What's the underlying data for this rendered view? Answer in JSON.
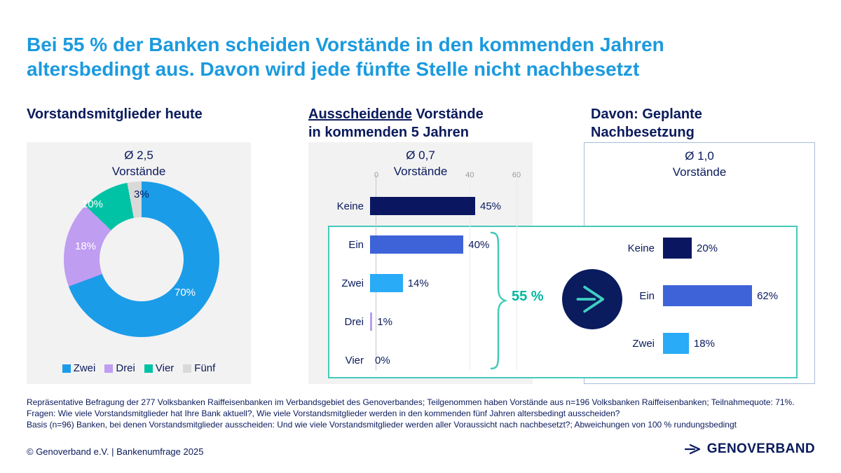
{
  "header": {
    "title_line1": "Bei 55 % der Banken scheiden Vorstände in den kommenden Jahren",
    "title_line2": "altersbedingt aus. Davon wird jede fünfte Stelle nicht nachbesetzt"
  },
  "sections": {
    "left": {
      "heading": "Vorstandsmitglieder heute",
      "avg": "Ø 2,5",
      "avg_unit": "Vorstände"
    },
    "middle": {
      "heading_underlined": "Ausscheidende",
      "heading_rest": " Vorstände",
      "heading_line2": "in kommenden 5 Jahren",
      "avg": "Ø 0,7",
      "avg_unit": "Vorstände"
    },
    "right": {
      "heading_line1": "Davon: Geplante",
      "heading_line2": "Nachbesetzung",
      "avg": "Ø 1,0",
      "avg_unit": "Vorstände"
    }
  },
  "donut": {
    "segments": [
      {
        "label": "Zwei",
        "value": 70,
        "pct_label": "70%",
        "color": "#1b9ce8",
        "label_color": "#ffffff"
      },
      {
        "label": "Drei",
        "value": 18,
        "pct_label": "18%",
        "color": "#bf9df1",
        "label_color": "#ffffff"
      },
      {
        "label": "Vier",
        "value": 10,
        "pct_label": "10%",
        "color": "#00c3a5",
        "label_color": "#ffffff"
      },
      {
        "label": "Fünf",
        "value": 3,
        "pct_label": "3%",
        "color": "#d9d9d9",
        "label_color": "#0a1a5c"
      }
    ]
  },
  "middle_chart": {
    "axis_max": 60,
    "axis_ticks": [
      {
        "label": "0",
        "value": 0
      },
      {
        "label": "40",
        "value": 40
      },
      {
        "label": "60",
        "value": 60
      }
    ],
    "rows": [
      {
        "label": "Keine",
        "value": 45,
        "value_label": "45%",
        "color": "#0a1760"
      },
      {
        "label": "Ein",
        "value": 40,
        "value_label": "40%",
        "color": "#3e63d8"
      },
      {
        "label": "Zwei",
        "value": 14,
        "value_label": "14%",
        "color": "#29abf7"
      },
      {
        "label": "Drei",
        "value": 1,
        "value_label": "1%",
        "color": "#b79df2"
      },
      {
        "label": "Vier",
        "value": 0,
        "value_label": "0%",
        "color": "#29abf7"
      }
    ]
  },
  "right_chart": {
    "rows": [
      {
        "label": "Keine",
        "value": 20,
        "value_label": "20%",
        "color": "#0a1760"
      },
      {
        "label": "Ein",
        "value": 62,
        "value_label": "62%",
        "color": "#3e63d8"
      },
      {
        "label": "Zwei",
        "value": 18,
        "value_label": "18%",
        "color": "#29abf7"
      }
    ]
  },
  "overlay": {
    "share_label": "55 %"
  },
  "footnotes": [
    "Repräsentative Befragung der 277 Volksbanken Raiffeisenbanken im Verbandsgebiet des Genoverbandes; Teilgenommen haben Vorstände aus n=196 Volksbanken Raiffeisenbanken; Teilnahmequote: 71%.",
    "Fragen: Wie viele Vorstandsmitglieder hat Ihre Bank aktuell?, Wie viele Vorstandsmitglieder werden in den kommenden fünf Jahren altersbedingt ausscheiden?",
    "Basis (n=96) Banken, bei denen Vorstandsmitglieder ausscheiden: Und wie viele Vorstandsmitglieder werden aller Voraussicht nach nachbesetzt?; Abweichungen von 100 % rundungsbedingt"
  ],
  "footer": {
    "copyright": "© Genoverband e.V. | Bankenumfrage 2025",
    "logo_text": "GENOVERBAND"
  },
  "colors": {
    "title_blue": "#1b9ade",
    "navy_text": "#0a1a5c",
    "teal_accent": "#45cabb",
    "share_teal": "#00b9a0",
    "panel_gray": "#f2f2f2",
    "circle_navy": "#0a1b5e"
  },
  "chart_data": [
    {
      "type": "pie",
      "subtype": "donut",
      "title": "Vorstandsmitglieder heute",
      "subtitle": "Ø 2,5 Vorstände",
      "labels": [
        "Zwei",
        "Drei",
        "Vier",
        "Fünf"
      ],
      "values": [
        70,
        18,
        10,
        3
      ],
      "unit": "%",
      "legend_position": "bottom"
    },
    {
      "type": "bar",
      "orientation": "horizontal",
      "title": "Ausscheidende Vorstände in kommenden 5 Jahren",
      "subtitle": "Ø 0,7 Vorstände",
      "categories": [
        "Keine",
        "Ein",
        "Zwei",
        "Drei",
        "Vier"
      ],
      "values": [
        45,
        40,
        14,
        1,
        0
      ],
      "unit": "%",
      "xlim": [
        0,
        60
      ],
      "x_ticks_visible": [
        0,
        40,
        60
      ],
      "annotation": "55 % (Anteil Banken mit mindestens einem ausscheidenden Vorstand: Ein/Zwei/Drei/Vier)"
    },
    {
      "type": "bar",
      "orientation": "horizontal",
      "title": "Davon: Geplante Nachbesetzung",
      "subtitle": "Ø 1,0 Vorstände",
      "categories": [
        "Keine",
        "Ein",
        "Zwei"
      ],
      "values": [
        20,
        62,
        18
      ],
      "unit": "%"
    }
  ]
}
